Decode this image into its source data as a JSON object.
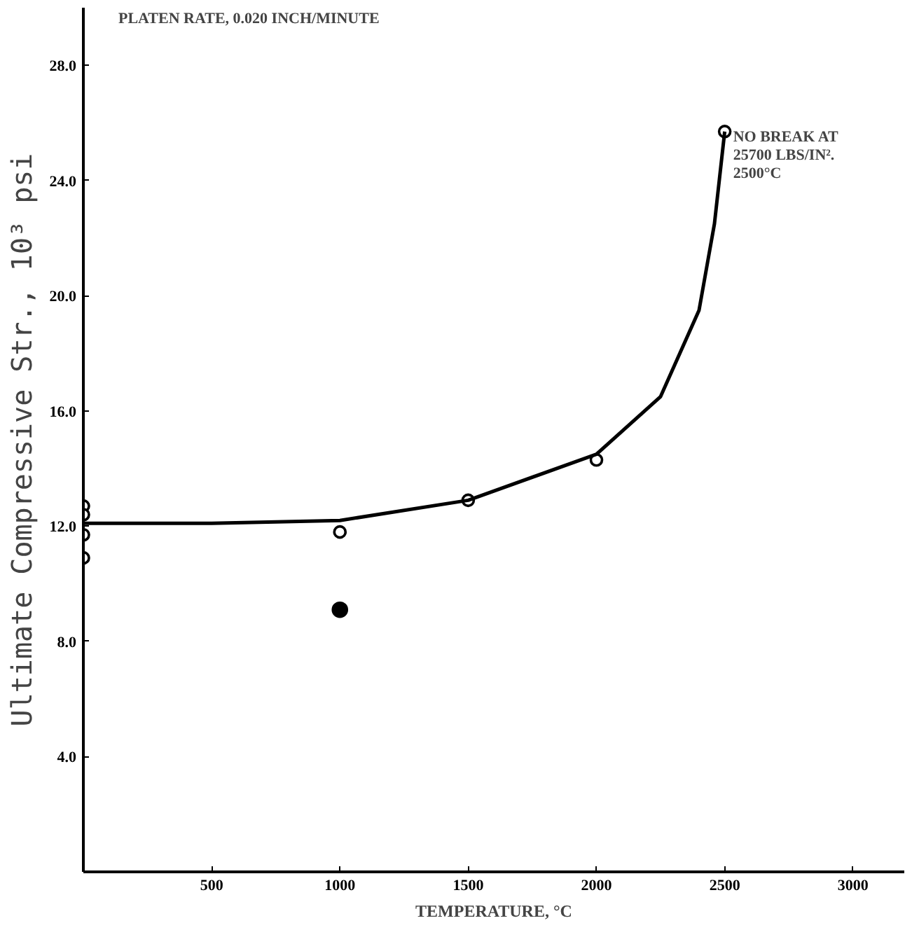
{
  "chart_data": {
    "type": "scatter",
    "xlabel": "TEMPERATURE, °C",
    "ylabel": "Ultimate Compressive Str., 10³ psi",
    "xlim": [
      0,
      3200
    ],
    "ylim": [
      0,
      30
    ],
    "xticks": [
      500,
      1000,
      1500,
      2000,
      2500,
      3000
    ],
    "yticks": [
      {
        "value": 4,
        "label": "4.0"
      },
      {
        "value": 8,
        "label": "8.0"
      },
      {
        "value": 12,
        "label": "12.0"
      },
      {
        "value": 16,
        "label": "16.0"
      },
      {
        "value": 20,
        "label": "20.0"
      },
      {
        "value": 24,
        "label": "24.0"
      },
      {
        "value": 28,
        "label": "28.0"
      }
    ],
    "grid": false,
    "series": [
      {
        "marker": "circle",
        "color": "#000000",
        "x": [
          0,
          0,
          0,
          0,
          1000,
          1500,
          2000,
          2500
        ],
        "values": [
          12.7,
          12.4,
          11.7,
          10.9,
          11.8,
          12.9,
          14.3,
          25.7
        ]
      },
      {
        "marker": "dot",
        "color": "#000000",
        "x": [
          1000
        ],
        "values": [
          9.1
        ]
      },
      {
        "type": "line",
        "marker": "none",
        "color": "#000000",
        "x": [
          0,
          500,
          1000,
          1500,
          2000,
          2250,
          2400,
          2460,
          2500
        ],
        "values": [
          12.1,
          12.1,
          12.2,
          12.9,
          14.5,
          16.5,
          19.5,
          22.5,
          25.7
        ]
      }
    ],
    "annotations": [
      "PLATEN RATE, 0.020 INCH/MINUTE",
      {
        "text": "NO BREAK AT\n25700 LBS/IN².\n2500°C",
        "x": 2500,
        "y": 25.7
      }
    ]
  }
}
